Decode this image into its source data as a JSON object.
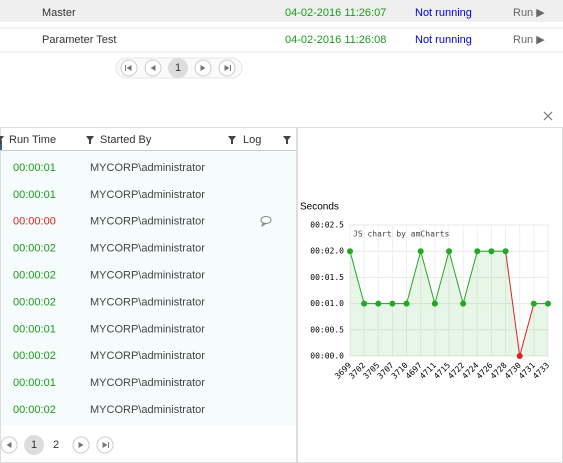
{
  "jobs": [
    {
      "name": "Master",
      "date": "04-02-2016 11:26:07",
      "status": "Not running",
      "action": "Run ▶"
    },
    {
      "name": "Parameter Test",
      "date": "04-02-2016 11:26:08",
      "status": "Not running",
      "action": "Run ▶"
    }
  ],
  "jobs_pager": {
    "pages": [
      "1"
    ]
  },
  "table": {
    "columns": [
      "Run Time",
      "Started By",
      "Log"
    ],
    "rows": [
      [
        "00:00:01",
        "MYCORP\\administrator"
      ],
      [
        "00:00:01",
        "MYCORP\\administrator"
      ],
      [
        "00:00:00",
        "MYCORP\\administrator"
      ],
      [
        "00:00:02",
        "MYCORP\\administrator"
      ],
      [
        "00:00:02",
        "MYCORP\\administrator"
      ],
      [
        "00:00:02",
        "MYCORP\\administrator"
      ],
      [
        "00:00:01",
        "MYCORP\\administrator"
      ],
      [
        "00:00:02",
        "MYCORP\\administrator"
      ],
      [
        "00:00:01",
        "MYCORP\\administrator"
      ],
      [
        "00:00:02",
        "MYCORP\\administrator"
      ]
    ],
    "run_time_colors": [
      "#1a9a1a",
      "#1a9a1a",
      "#e02020",
      "#1a9a1a",
      "#1a9a1a",
      "#1a9a1a",
      "#1a9a1a",
      "#1a9a1a",
      "#1a9a1a",
      "#1a9a1a"
    ]
  },
  "table_pager": {
    "pages": [
      "1",
      "2"
    ]
  },
  "chart_data": {
    "type": "line",
    "y_label": "Seconds",
    "watermark": "JS chart by amCharts",
    "categories": [
      "3699",
      "3702",
      "3705",
      "3707",
      "3710",
      "4697",
      "4711",
      "4715",
      "4722",
      "4724",
      "4726",
      "4728",
      "4730",
      "4731",
      "4733"
    ],
    "series": [
      {
        "color": "#22a822",
        "values": [
          2,
          1,
          1,
          1,
          1,
          2,
          1,
          2,
          1,
          2,
          2,
          2,
          0,
          1,
          1
        ],
        "point_colors": [
          "#22a822",
          "#22a822",
          "#22a822",
          "#22a822",
          "#22a822",
          "#22a822",
          "#22a822",
          "#22a822",
          "#22a822",
          "#22a822",
          "#22a822",
          "#22a822",
          "#e02020",
          "#22a822",
          "#22a822"
        ]
      }
    ],
    "ylim": [
      0,
      2.5
    ],
    "yticks": [
      {
        "value": 0,
        "label": "00:00.0"
      },
      {
        "value": 0.5,
        "label": "00:00.5"
      },
      {
        "value": 1,
        "label": "00:01.0"
      },
      {
        "value": 1.5,
        "label": "00:01.5"
      },
      {
        "value": 2,
        "label": "00:02.0"
      },
      {
        "value": 2.5,
        "label": "00:02.5"
      }
    ],
    "grid": true
  }
}
